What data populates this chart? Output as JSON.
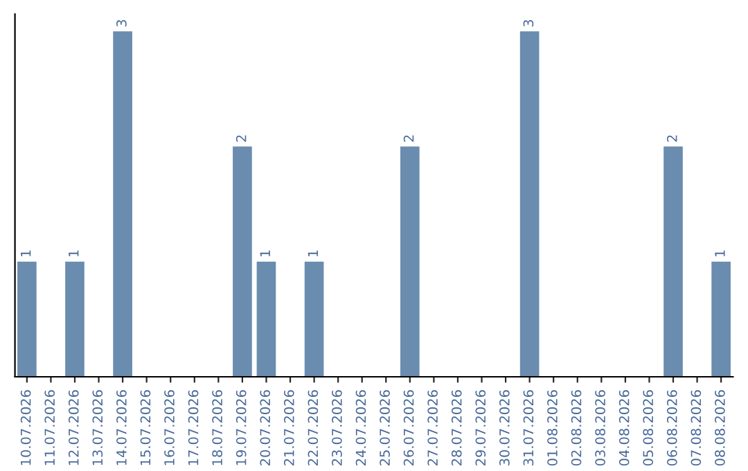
{
  "chart_data": {
    "type": "bar",
    "categories": [
      "10.07.2026",
      "11.07.2026",
      "12.07.2026",
      "13.07.2026",
      "14.07.2026",
      "15.07.2026",
      "16.07.2026",
      "17.07.2026",
      "18.07.2026",
      "19.07.2026",
      "20.07.2026",
      "21.07.2026",
      "22.07.2026",
      "23.07.2026",
      "24.07.2026",
      "25.07.2026",
      "26.07.2026",
      "27.07.2026",
      "28.07.2026",
      "29.07.2026",
      "30.07.2026",
      "31.07.2026",
      "01.08.2026",
      "02.08.2026",
      "03.08.2026",
      "04.08.2026",
      "05.08.2026",
      "06.08.2026",
      "07.08.2026",
      "08.08.2026"
    ],
    "values": [
      1,
      null,
      1,
      null,
      3,
      null,
      null,
      null,
      null,
      2,
      1,
      null,
      1,
      null,
      null,
      null,
      2,
      null,
      null,
      null,
      null,
      3,
      null,
      null,
      null,
      null,
      null,
      2,
      null,
      1
    ],
    "data_labels": true,
    "color": "#6a8caf",
    "tick_labels": "x",
    "grid": false,
    "legend": false
  }
}
